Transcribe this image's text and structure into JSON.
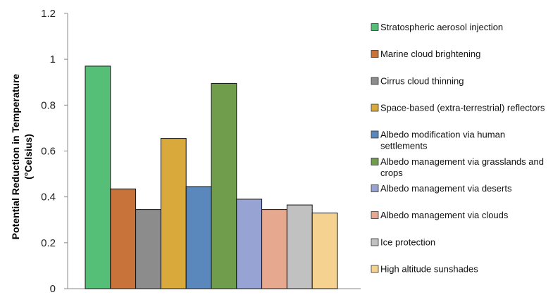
{
  "chart_data": {
    "type": "bar",
    "title": "",
    "xlabel": "",
    "ylabel": [
      "Potential Reduction in Temperature",
      "(°Celsius)"
    ],
    "ylim": [
      0,
      1.2
    ],
    "yticks": [
      0,
      0.2,
      0.4,
      0.6,
      0.8,
      1,
      1.2
    ],
    "ytick_labels": [
      "0",
      "0.2",
      "0.4",
      "0.6",
      "0.8",
      "1",
      "1.2"
    ],
    "grid": false,
    "legend_position": "right",
    "categories": [
      "Stratospheric aerosol injection",
      "Marine cloud brightening",
      "Cirrus cloud thinning",
      "Space-based (extra-terrestrial) reflectors",
      "Albedo modification via human settlements",
      "Albedo management via grasslands and crops",
      "Albedo management via deserts",
      "Albedo management via clouds",
      "Ice protection",
      "High altitude sunshades"
    ],
    "legend_lines": [
      [
        "Stratospheric aerosol injection"
      ],
      [
        "Marine cloud brightening"
      ],
      [
        "Cirrus cloud thinning"
      ],
      [
        "Space-based (extra-terrestrial) reflectors"
      ],
      [
        "Albedo modification via human",
        "settlements"
      ],
      [
        "Albedo management via grasslands and",
        "crops"
      ],
      [
        "Albedo management via deserts"
      ],
      [
        "Albedo management via clouds"
      ],
      [
        "Ice protection"
      ],
      [
        "High altitude sunshades"
      ]
    ],
    "values": [
      0.97,
      0.435,
      0.345,
      0.655,
      0.445,
      0.895,
      0.39,
      0.345,
      0.365,
      0.33
    ],
    "colors": [
      "#55bf78",
      "#c8733a",
      "#8c8c8c",
      "#d9a93c",
      "#5a88bd",
      "#6f9d4b",
      "#96a3d3",
      "#e6a98f",
      "#c1c1c1",
      "#f5d28f"
    ]
  }
}
